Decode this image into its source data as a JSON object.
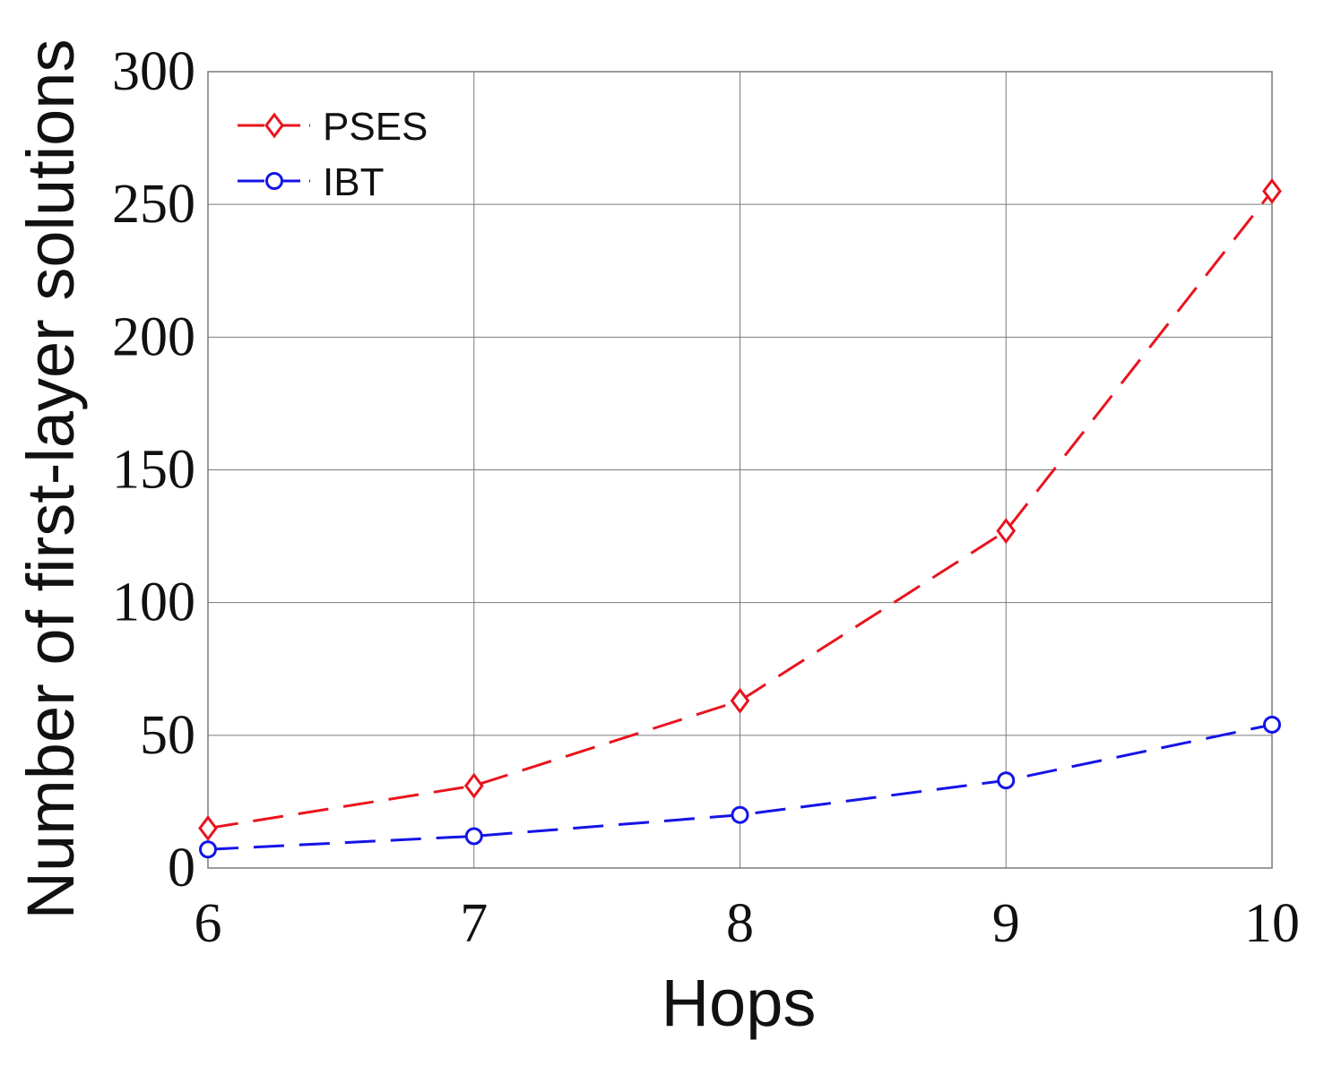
{
  "chart_data": {
    "type": "line",
    "title": "",
    "xlabel": "Hops",
    "ylabel": "Number of first-layer solutions",
    "x": [
      6,
      7,
      8,
      9,
      10
    ],
    "x_ticks": [
      "6",
      "7",
      "8",
      "9",
      "10"
    ],
    "y_ticks": [
      "0",
      "50",
      "100",
      "150",
      "200",
      "250",
      "300"
    ],
    "xlim": [
      6,
      10
    ],
    "ylim": [
      0,
      300
    ],
    "grid": true,
    "legend_position": "top-left",
    "series": [
      {
        "name": "PSES",
        "values": [
          15,
          31,
          63,
          127,
          255
        ],
        "color": "#e8141e",
        "marker": "diamond",
        "line_style": "dashed"
      },
      {
        "name": "IBT",
        "values": [
          7,
          12,
          20,
          33,
          54
        ],
        "color": "#1414e8",
        "marker": "circle",
        "line_style": "dashed"
      }
    ]
  }
}
